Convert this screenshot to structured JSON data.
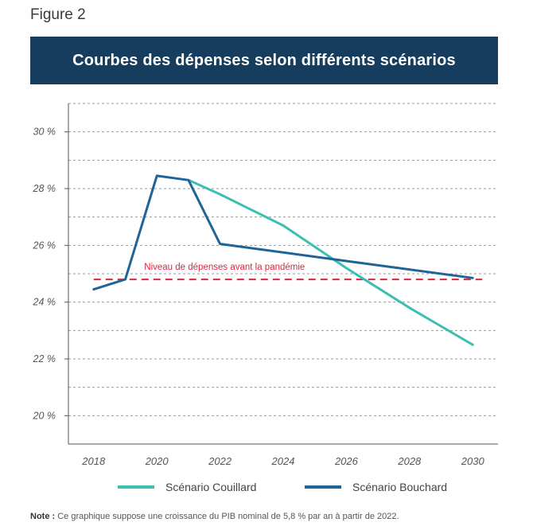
{
  "figure_label": "Figure 2",
  "title": "Courbes des dépenses selon différents scénarios",
  "note_label": "Note :",
  "note_text": "Ce graphique suppose une croissance du PIB nominal de 5,8 % par an à partir de 2022.",
  "colors": {
    "couillard": "#3bbfb0",
    "bouchard": "#1f6496",
    "reference": "#e0243f",
    "title_bg": "#163d5e"
  },
  "chart_data": {
    "type": "line",
    "title": "Courbes des dépenses selon différents scénarios",
    "xlabel": "",
    "ylabel": "",
    "xlim": [
      2017.2,
      2030.8
    ],
    "ylim": [
      19,
      31
    ],
    "x_ticks": [
      2018,
      2020,
      2022,
      2024,
      2026,
      2028,
      2030
    ],
    "x_tick_labels": [
      "2018",
      "2020",
      "2022",
      "2024",
      "2026",
      "2028",
      "2030"
    ],
    "y_ticks": [
      20,
      22,
      24,
      26,
      28,
      30
    ],
    "y_tick_labels": [
      "20 %",
      "22 %",
      "24 %",
      "26 %",
      "28 %",
      "30 %"
    ],
    "grid": "horizontal dashed",
    "legend": "bottom",
    "series": [
      {
        "name": "Scénario Couillard",
        "color": "#3bbfb0",
        "points": [
          [
            2021,
            28.3
          ],
          [
            2022,
            27.8
          ],
          [
            2023,
            27.25
          ],
          [
            2024,
            26.7
          ],
          [
            2025,
            25.95
          ],
          [
            2026,
            25.2
          ],
          [
            2027,
            24.5
          ],
          [
            2028,
            23.8
          ],
          [
            2029,
            23.15
          ],
          [
            2030,
            22.5
          ]
        ]
      },
      {
        "name": "Scénario Bouchard",
        "color": "#1f6496",
        "points": [
          [
            2018,
            24.45
          ],
          [
            2019,
            24.8
          ],
          [
            2020,
            28.45
          ],
          [
            2021,
            28.3
          ],
          [
            2022,
            26.05
          ],
          [
            2026,
            25.45
          ],
          [
            2030,
            24.85
          ]
        ]
      }
    ],
    "reference_line": {
      "label": "Niveau de dépenses avant la pandémie",
      "value": 24.8,
      "x_range": [
        2018,
        2030.3
      ],
      "color": "#e0243f"
    }
  }
}
